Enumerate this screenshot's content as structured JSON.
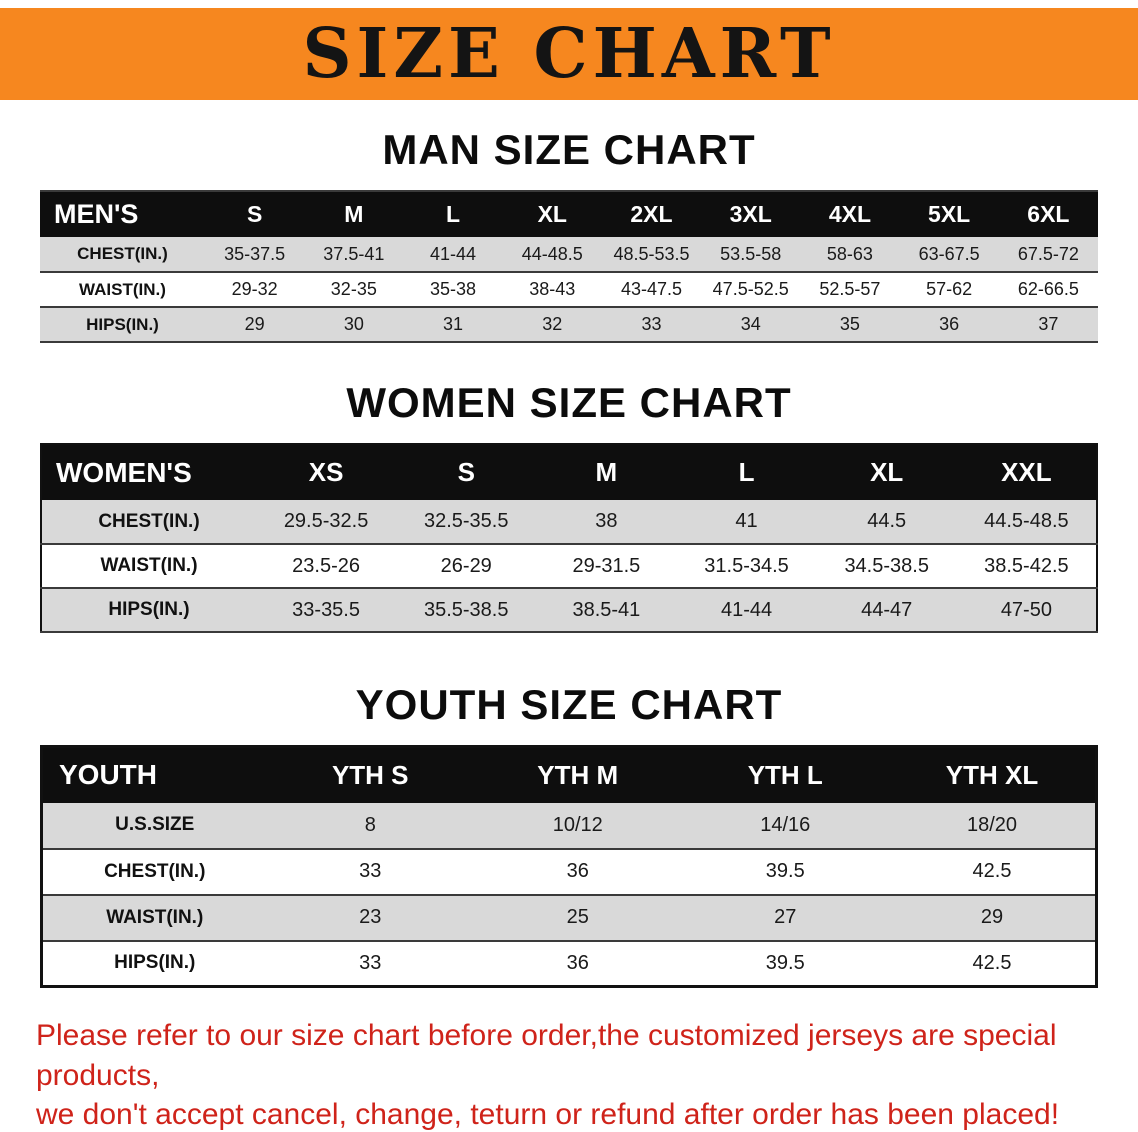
{
  "banner": {
    "title": "SIZE CHART",
    "bg": "#f6871f"
  },
  "sections": [
    {
      "heading": "MAN SIZE CHART",
      "table": {
        "label": "MEN'S",
        "columns": [
          "S",
          "M",
          "L",
          "XL",
          "2XL",
          "3XL",
          "4XL",
          "5XL",
          "6XL"
        ],
        "rows": [
          {
            "label": "CHEST(IN.)",
            "values": [
              "35-37.5",
              "37.5-41",
              "41-44",
              "44-48.5",
              "48.5-53.5",
              "53.5-58",
              "58-63",
              "63-67.5",
              "67.5-72"
            ]
          },
          {
            "label": "WAIST(IN.)",
            "values": [
              "29-32",
              "32-35",
              "35-38",
              "38-43",
              "43-47.5",
              "47.5-52.5",
              "52.5-57",
              "57-62",
              "62-66.5"
            ]
          },
          {
            "label": "HIPS(IN.)",
            "values": [
              "29",
              "30",
              "31",
              "32",
              "33",
              "34",
              "35",
              "36",
              "37"
            ]
          }
        ]
      }
    },
    {
      "heading": "WOMEN SIZE CHART",
      "table": {
        "label": "WOMEN'S",
        "columns": [
          "XS",
          "S",
          "M",
          "L",
          "XL",
          "XXL"
        ],
        "rows": [
          {
            "label": "CHEST(IN.)",
            "values": [
              "29.5-32.5",
              "32.5-35.5",
              "38",
              "41",
              "44.5",
              "44.5-48.5"
            ]
          },
          {
            "label": "WAIST(IN.)",
            "values": [
              "23.5-26",
              "26-29",
              "29-31.5",
              "31.5-34.5",
              "34.5-38.5",
              "38.5-42.5"
            ]
          },
          {
            "label": "HIPS(IN.)",
            "values": [
              "33-35.5",
              "35.5-38.5",
              "38.5-41",
              "41-44",
              "44-47",
              "47-50"
            ]
          }
        ]
      }
    },
    {
      "heading": "YOUTH SIZE CHART",
      "table": {
        "label": "YOUTH",
        "columns": [
          "YTH S",
          "YTH M",
          "YTH L",
          "YTH XL"
        ],
        "rows": [
          {
            "label": "U.S.SIZE",
            "values": [
              "8",
              "10/12",
              "14/16",
              "18/20"
            ]
          },
          {
            "label": "CHEST(IN.)",
            "values": [
              "33",
              "36",
              "39.5",
              "42.5"
            ]
          },
          {
            "label": "WAIST(IN.)",
            "values": [
              "23",
              "25",
              "27",
              "29"
            ]
          },
          {
            "label": "HIPS(IN.)",
            "values": [
              "33",
              "36",
              "39.5",
              "42.5"
            ]
          }
        ]
      }
    }
  ],
  "footer": {
    "line1": "Please refer to our size chart before order,the customized jerseys are special products,",
    "line2": "we don't accept cancel, change, teturn or refund after order has been placed!"
  }
}
